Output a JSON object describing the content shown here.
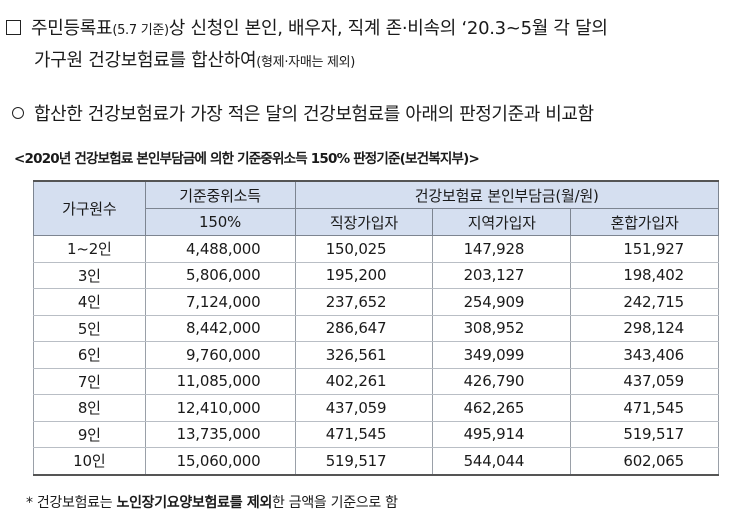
{
  "bullet1": {
    "marker": "□",
    "line1_main": "주민등록표",
    "line1_small": "(5.7 기준)",
    "line1_rest": "상 신청인 본인, 배우자, 직계 존·비속의 ‘20.3~5월 각 달의",
    "line2_main": "가구원 건강보험료를 합산하여",
    "line2_small": "(형제·자매는 제외)"
  },
  "bullet2": {
    "marker": "o",
    "text": "합산한 건강보험료가 가장 적은 달의 건강보험료를 아래의 판정기준과 비교함"
  },
  "table_caption": "<2020년 건강보험료 본인부담금에 의한 기준중위소득 150% 판정기준(보건복지부)>",
  "table": {
    "headers": {
      "household": "가구원수",
      "income_line1": "기준중위소득",
      "income_line2": "150%",
      "premium_group": "건강보험료 본인부담금(월/원)",
      "employee": "직장가입자",
      "regional": "지역가입자",
      "mixed": "혼합가입자"
    },
    "rows": [
      {
        "size": "1~2인",
        "income": "4,488,000",
        "employee": "150,025",
        "regional": "147,928",
        "mixed": "151,927"
      },
      {
        "size": "3인",
        "income": "5,806,000",
        "employee": "195,200",
        "regional": "203,127",
        "mixed": "198,402"
      },
      {
        "size": "4인",
        "income": "7,124,000",
        "employee": "237,652",
        "regional": "254,909",
        "mixed": "242,715"
      },
      {
        "size": "5인",
        "income": "8,442,000",
        "employee": "286,647",
        "regional": "308,952",
        "mixed": "298,124"
      },
      {
        "size": "6인",
        "income": "9,760,000",
        "employee": "326,561",
        "regional": "349,099",
        "mixed": "343,406"
      },
      {
        "size": "7인",
        "income": "11,085,000",
        "employee": "402,261",
        "regional": "426,790",
        "mixed": "437,059"
      },
      {
        "size": "8인",
        "income": "12,410,000",
        "employee": "437,059",
        "regional": "462,265",
        "mixed": "471,545"
      },
      {
        "size": "9인",
        "income": "13,735,000",
        "employee": "471,545",
        "regional": "495,914",
        "mixed": "519,517"
      },
      {
        "size": "10인",
        "income": "15,060,000",
        "employee": "519,517",
        "regional": "544,044",
        "mixed": "602,065"
      }
    ]
  },
  "note": {
    "prefix": "* 건강보험료는 ",
    "bold": "노인장기요양보험료를 제외",
    "suffix": "한 금액을 기준으로 함"
  }
}
